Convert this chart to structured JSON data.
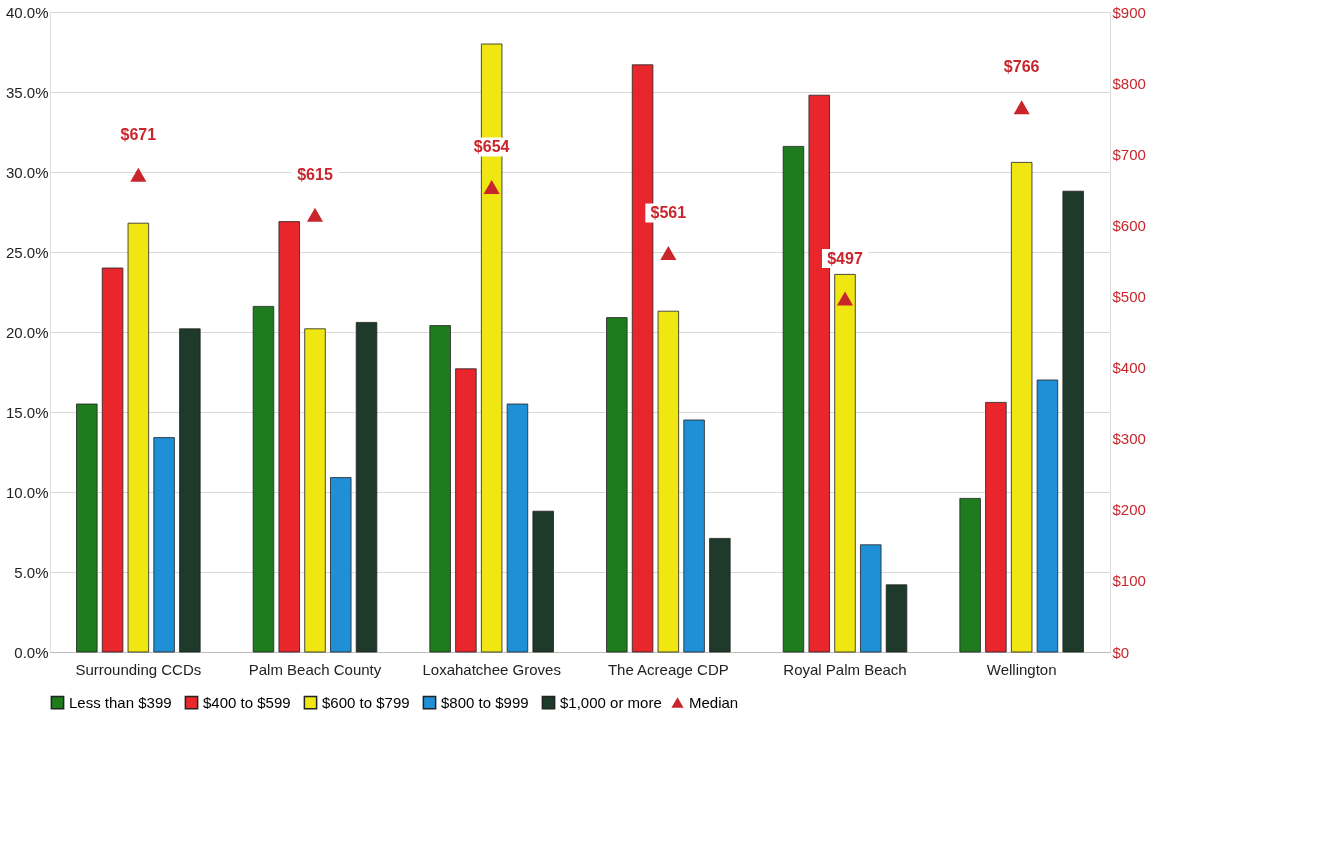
{
  "chart_data": {
    "type": "bar",
    "categories": [
      "Surrounding CCDs",
      "Palm Beach County",
      "Loxahatchee Groves",
      "The Acreage CDP",
      "Royal Palm Beach",
      "Wellington"
    ],
    "series": [
      {
        "name": "Less than $399",
        "color": "#1e7b1e",
        "values": [
          15.5,
          21.6,
          20.4,
          20.9,
          31.6,
          9.6
        ]
      },
      {
        "name": "$400 to $599",
        "color": "#e8262b",
        "values": [
          24.0,
          26.9,
          17.7,
          36.7,
          34.8,
          15.6
        ]
      },
      {
        "name": "$600 to $799",
        "color": "#f0e612",
        "values": [
          26.8,
          20.2,
          38.0,
          21.3,
          23.6,
          30.6
        ]
      },
      {
        "name": "$800 to $999",
        "color": "#1f8fd6",
        "values": [
          13.4,
          10.9,
          15.5,
          14.5,
          6.7,
          17.0
        ]
      },
      {
        "name": "$1,000 or more",
        "color": "#1e3a2a",
        "values": [
          20.2,
          20.6,
          8.8,
          7.1,
          4.2,
          28.8
        ]
      },
      {
        "name": "Median",
        "type": "scatter",
        "axis": "y2",
        "marker": "triangle",
        "color": "#c8262c",
        "values": [
          671,
          615,
          654,
          561,
          497,
          766
        ],
        "value_labels": [
          "$671",
          "$615",
          "$654",
          "$561",
          "$497",
          "$766"
        ]
      }
    ],
    "ylim": [
      0,
      40
    ],
    "yticks": [
      {
        "value": 0,
        "label": "0.0%"
      },
      {
        "value": 5,
        "label": "5.0%"
      },
      {
        "value": 10,
        "label": "10.0%"
      },
      {
        "value": 15,
        "label": "15.0%"
      },
      {
        "value": 20,
        "label": "20.0%"
      },
      {
        "value": 25,
        "label": "25.0%"
      },
      {
        "value": 30,
        "label": "30.0%"
      },
      {
        "value": 35,
        "label": "35.0%"
      },
      {
        "value": 40,
        "label": "40.0%"
      }
    ],
    "y2lim": [
      0,
      900
    ],
    "y2ticks": [
      {
        "value": 0,
        "label": "$0"
      },
      {
        "value": 100,
        "label": "$100"
      },
      {
        "value": 200,
        "label": "$200"
      },
      {
        "value": 300,
        "label": "$300"
      },
      {
        "value": 400,
        "label": "$400"
      },
      {
        "value": 500,
        "label": "$500"
      },
      {
        "value": 600,
        "label": "$600"
      },
      {
        "value": 700,
        "label": "$700"
      },
      {
        "value": 800,
        "label": "$800"
      },
      {
        "value": 900,
        "label": "$900"
      }
    ],
    "grid": "y",
    "legend": "bottom"
  }
}
